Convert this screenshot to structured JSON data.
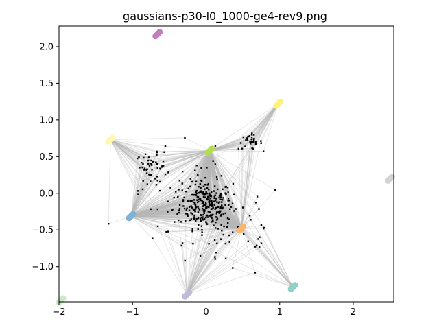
{
  "chart_data": {
    "type": "scatter",
    "title": "gaussians-p30-l0_1000-ge4-rev9.png",
    "xlabel": "",
    "ylabel": "",
    "xlim": [
      -2.0,
      2.55
    ],
    "ylim": [
      -1.48,
      2.28
    ],
    "x_ticks": [
      -2,
      -1,
      0,
      1,
      2
    ],
    "y_ticks": [
      -1.0,
      -0.5,
      0.0,
      0.5,
      1.0,
      1.5,
      2.0
    ],
    "x_tick_labels": [
      "−2",
      "−1",
      "0",
      "1",
      "2"
    ],
    "y_tick_labels": [
      "−1.0",
      "−0.5",
      "0.0",
      "0.5",
      "1.0",
      "1.5",
      "2.0"
    ],
    "grid": false,
    "legend": "none",
    "anchors": [
      {
        "x": -0.66,
        "y": 2.17,
        "color": "#c27fc0"
      },
      {
        "x": 0.98,
        "y": 1.22,
        "color": "#fff27a"
      },
      {
        "x": -1.3,
        "y": 0.73,
        "color": "#fff9b0"
      },
      {
        "x": 0.05,
        "y": 0.58,
        "color": "#b3de52"
      },
      {
        "x": 2.5,
        "y": 0.2,
        "color": "#d3d3d3"
      },
      {
        "x": -1.02,
        "y": -0.31,
        "color": "#7eb1d6"
      },
      {
        "x": 0.48,
        "y": -0.48,
        "color": "#fdb46b"
      },
      {
        "x": 1.18,
        "y": -1.28,
        "color": "#8dd3c7"
      },
      {
        "x": -0.26,
        "y": -1.38,
        "color": "#bebada"
      },
      {
        "x": -1.97,
        "y": -1.46,
        "color": "#ccebc5"
      }
    ],
    "clusters": [
      {
        "cx": 0.0,
        "cy": -0.15,
        "sx": 0.18,
        "sy": 0.16,
        "n": 260
      },
      {
        "cx": -0.76,
        "cy": 0.36,
        "sx": 0.1,
        "sy": 0.09,
        "n": 40
      },
      {
        "cx": 0.6,
        "cy": 0.7,
        "sx": 0.08,
        "sy": 0.05,
        "n": 30
      },
      {
        "cx": 0.3,
        "cy": -0.5,
        "sx": 0.4,
        "sy": 0.35,
        "n": 60
      },
      {
        "cx": -0.4,
        "cy": -0.1,
        "sx": 0.35,
        "sy": 0.35,
        "n": 50
      }
    ],
    "colors": {
      "point": "#000000",
      "edge": "#b8b8b8"
    }
  }
}
